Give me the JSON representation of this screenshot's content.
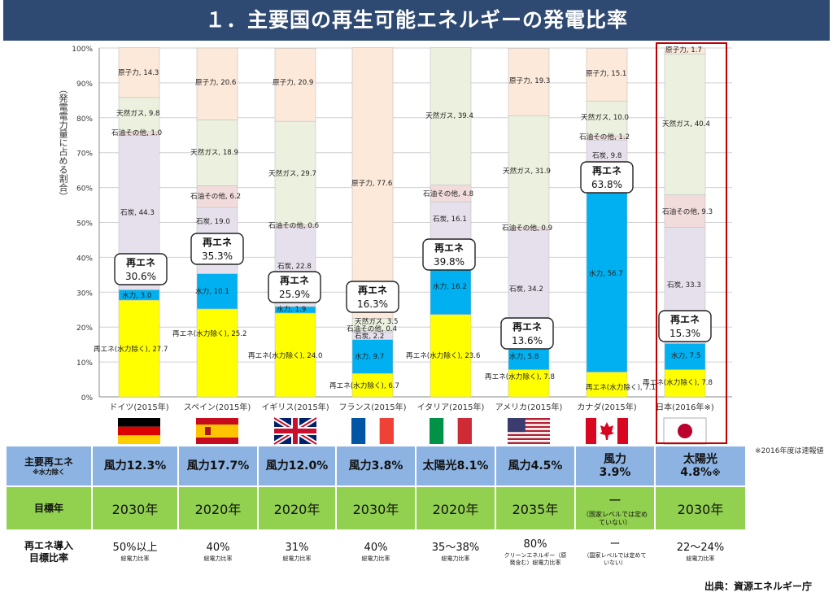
{
  "title": "１．主要国の再生可能エネルギーの発電比率",
  "ylabel": "（発電電力量に占める割合）",
  "colors": {
    "renew_ex_hydro": "#ffff00",
    "hydro": "#00b0f0",
    "coal": "#e6e0ec",
    "oil": "#f2dcdb",
    "gas": "#ebf1de",
    "nuclear": "#fde9d9",
    "title_bg": "#2e4a73",
    "highlight": "#c00000"
  },
  "chart_data": {
    "type": "bar",
    "stacked": true,
    "ylim": [
      0,
      100
    ],
    "yticks": [
      "0%",
      "10%",
      "20%",
      "30%",
      "40%",
      "50%",
      "60%",
      "70%",
      "80%",
      "90%",
      "100%"
    ],
    "categories": [
      "ドイツ(2015年)",
      "スペイン(2015年)",
      "イギリス(2015年)",
      "フランス(2015年)",
      "イタリア(2015年)",
      "アメリカ(2015年)",
      "カナダ(2015年)",
      "日本(2016年※)"
    ],
    "renew_total_label": "再エネ",
    "renew_totals": [
      "30.6%",
      "35.3%",
      "25.9%",
      "16.3%",
      "39.8%",
      "13.6%",
      "63.8%",
      "15.3%"
    ],
    "series": [
      {
        "name": "再エネ(水力除く)",
        "values": [
          27.7,
          25.2,
          24.0,
          6.7,
          23.6,
          7.8,
          7.1,
          7.8
        ]
      },
      {
        "name": "水力",
        "values": [
          3.0,
          10.1,
          1.9,
          9.7,
          16.2,
          5.8,
          56.7,
          7.5
        ]
      },
      {
        "name": "石炭",
        "values": [
          44.3,
          19.0,
          22.8,
          2.2,
          16.1,
          34.2,
          9.8,
          33.3
        ]
      },
      {
        "name": "石油その他",
        "values": [
          1.0,
          6.2,
          0.6,
          0.4,
          4.8,
          0.9,
          1.2,
          9.3
        ]
      },
      {
        "name": "天然ガス",
        "values": [
          9.8,
          18.9,
          29.7,
          3.5,
          39.4,
          31.9,
          10.0,
          40.4
        ]
      },
      {
        "name": "原子力",
        "values": [
          14.3,
          20.6,
          20.9,
          77.6,
          0,
          19.3,
          15.1,
          1.7
        ]
      }
    ]
  },
  "table": {
    "side_note": "※2016年度は速報値",
    "rows": [
      {
        "header": "主要再エネ",
        "header_sub": "※水力除く",
        "cells": [
          {
            "value": "風力12.3%"
          },
          {
            "value": "風力17.7%"
          },
          {
            "value": "風力12.0%"
          },
          {
            "value": "風力3.8%"
          },
          {
            "value": "太陽光8.1%"
          },
          {
            "value": "風力4.5%"
          },
          {
            "value": "風力",
            "value2": "3.9%"
          },
          {
            "value": "太陽光",
            "value2": "4.8%",
            "mark": "※"
          }
        ]
      },
      {
        "header": "目標年",
        "cells": [
          {
            "value": "2030年"
          },
          {
            "value": "2020年"
          },
          {
            "value": "2020年"
          },
          {
            "value": "2030年"
          },
          {
            "value": "2020年"
          },
          {
            "value": "2035年"
          },
          {
            "value": "ー",
            "sub": "（国家レベルでは定めていない）"
          },
          {
            "value": "2030年"
          }
        ]
      },
      {
        "header": "再エネ導入",
        "header2": "目標比率",
        "cells": [
          {
            "value": "50%以上",
            "sub": "総電力比率"
          },
          {
            "value": "40%",
            "sub": "総電力比率"
          },
          {
            "value": "31%",
            "sub": "総電力比率"
          },
          {
            "value": "40%",
            "sub": "総電力比率"
          },
          {
            "value": "35～38%",
            "sub": "総電力比率"
          },
          {
            "value": "80%",
            "sub": "クリーンエネルギー（原発含む）総電力比率"
          },
          {
            "value": "ー",
            "sub": "（国家レベルでは定めていない）"
          },
          {
            "value": "22～24%",
            "sub": "総電力比率"
          }
        ]
      }
    ]
  },
  "source": "出典：資源エネルギー庁"
}
